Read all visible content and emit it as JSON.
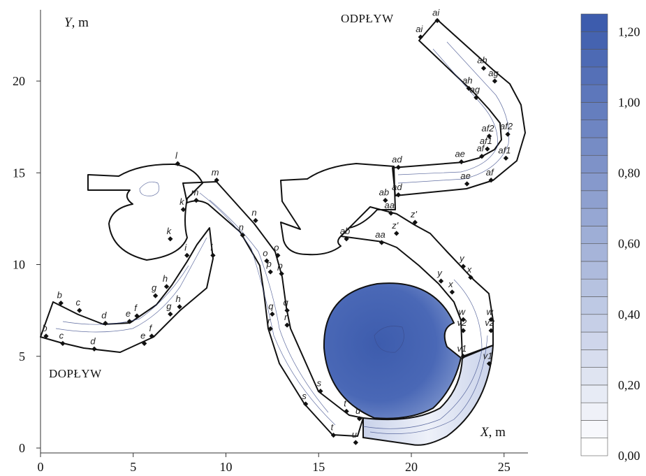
{
  "chart_data": {
    "type": "heatmap",
    "xlabel": "X, m",
    "ylabel": "Y, m",
    "xlim": [
      0,
      26
    ],
    "ylim": [
      -0.3,
      23.5
    ],
    "x_ticks": [
      0,
      5,
      10,
      15,
      20,
      25
    ],
    "y_ticks": [
      0,
      5,
      10,
      15,
      20
    ],
    "annotations": [
      {
        "text": "ODPŁYW",
        "x": 17.5,
        "y": 22.8
      },
      {
        "text": "DOPŁYW",
        "x": 1.6,
        "y": 3.9
      }
    ],
    "colorbar": {
      "min": 0.0,
      "max": 1.25,
      "step": 0.05,
      "labels": [
        "0,00",
        "0,20",
        "0,40",
        "0,60",
        "0,80",
        "1,00",
        "1,20"
      ],
      "label_values": [
        0.0,
        0.2,
        0.4,
        0.6,
        0.8,
        1.0,
        1.2
      ],
      "color_low": "#ffffff",
      "color_high": "#3d5cad"
    },
    "section_points": [
      {
        "name": "b",
        "x": 1.1,
        "y": 7.9
      },
      {
        "name": "b",
        "x": 0.3,
        "y": 6.1
      },
      {
        "name": "c",
        "x": 2.1,
        "y": 7.5
      },
      {
        "name": "c",
        "x": 1.2,
        "y": 5.7
      },
      {
        "name": "d",
        "x": 3.5,
        "y": 6.8
      },
      {
        "name": "d",
        "x": 2.9,
        "y": 5.4
      },
      {
        "name": "e",
        "x": 4.8,
        "y": 6.9
      },
      {
        "name": "e",
        "x": 5.6,
        "y": 5.7
      },
      {
        "name": "f",
        "x": 5.2,
        "y": 7.2
      },
      {
        "name": "f",
        "x": 6.0,
        "y": 6.1
      },
      {
        "name": "g",
        "x": 6.2,
        "y": 8.3
      },
      {
        "name": "g",
        "x": 7.0,
        "y": 7.3
      },
      {
        "name": "h",
        "x": 6.8,
        "y": 8.8
      },
      {
        "name": "h",
        "x": 7.5,
        "y": 7.7
      },
      {
        "name": "i",
        "x": 7.9,
        "y": 10.5
      },
      {
        "name": "i",
        "x": 9.3,
        "y": 10.5
      },
      {
        "name": "k",
        "x": 7.0,
        "y": 11.4
      },
      {
        "name": "k",
        "x": 7.7,
        "y": 13.0
      },
      {
        "name": "l",
        "x": 7.4,
        "y": 15.5
      },
      {
        "name": "m",
        "x": 9.5,
        "y": 14.6
      },
      {
        "name": "m",
        "x": 8.4,
        "y": 13.5
      },
      {
        "name": "n",
        "x": 11.6,
        "y": 12.4
      },
      {
        "name": "n",
        "x": 10.9,
        "y": 11.6
      },
      {
        "name": "o",
        "x": 12.8,
        "y": 10.5
      },
      {
        "name": "o",
        "x": 12.2,
        "y": 10.2
      },
      {
        "name": "p",
        "x": 13.0,
        "y": 9.5
      },
      {
        "name": "p",
        "x": 12.4,
        "y": 9.6
      },
      {
        "name": "q",
        "x": 13.3,
        "y": 7.5
      },
      {
        "name": "q",
        "x": 12.5,
        "y": 7.3
      },
      {
        "name": "r",
        "x": 13.3,
        "y": 6.7
      },
      {
        "name": "r",
        "x": 12.4,
        "y": 6.5
      },
      {
        "name": "s",
        "x": 15.1,
        "y": 3.1
      },
      {
        "name": "s",
        "x": 14.3,
        "y": 2.4
      },
      {
        "name": "t",
        "x": 16.5,
        "y": 2.0
      },
      {
        "name": "t",
        "x": 15.8,
        "y": 0.7
      },
      {
        "name": "u",
        "x": 17.2,
        "y": 1.6
      },
      {
        "name": "u",
        "x": 17.0,
        "y": 0.3
      },
      {
        "name": "v1",
        "x": 22.8,
        "y": 5.0
      },
      {
        "name": "v1",
        "x": 24.2,
        "y": 4.6
      },
      {
        "name": "v2",
        "x": 22.8,
        "y": 6.4
      },
      {
        "name": "v2",
        "x": 24.3,
        "y": 6.4
      },
      {
        "name": "w",
        "x": 22.8,
        "y": 7.0
      },
      {
        "name": "w",
        "x": 24.3,
        "y": 7.0
      },
      {
        "name": "x",
        "x": 22.2,
        "y": 8.5
      },
      {
        "name": "x",
        "x": 23.2,
        "y": 9.3
      },
      {
        "name": "y",
        "x": 21.6,
        "y": 9.1
      },
      {
        "name": "y",
        "x": 22.8,
        "y": 9.9
      },
      {
        "name": "z'",
        "x": 19.2,
        "y": 11.7
      },
      {
        "name": "z'",
        "x": 20.2,
        "y": 12.3
      },
      {
        "name": "aa",
        "x": 18.4,
        "y": 11.2
      },
      {
        "name": "aa",
        "x": 18.9,
        "y": 12.8
      },
      {
        "name": "ab",
        "x": 16.5,
        "y": 11.4
      },
      {
        "name": "ab",
        "x": 18.6,
        "y": 13.5
      },
      {
        "name": "ad",
        "x": 19.3,
        "y": 15.3
      },
      {
        "name": "ad",
        "x": 19.3,
        "y": 13.8
      },
      {
        "name": "ae",
        "x": 22.7,
        "y": 15.6
      },
      {
        "name": "ae",
        "x": 23.0,
        "y": 14.4
      },
      {
        "name": "af",
        "x": 23.8,
        "y": 15.9
      },
      {
        "name": "af",
        "x": 24.3,
        "y": 14.6
      },
      {
        "name": "af1",
        "x": 24.1,
        "y": 16.3
      },
      {
        "name": "af1",
        "x": 25.1,
        "y": 15.8
      },
      {
        "name": "af2",
        "x": 24.2,
        "y": 17.0
      },
      {
        "name": "af2",
        "x": 25.2,
        "y": 17.1
      },
      {
        "name": "ag",
        "x": 23.5,
        "y": 19.1
      },
      {
        "name": "ag",
        "x": 24.5,
        "y": 20.0
      },
      {
        "name": "ah",
        "x": 23.1,
        "y": 19.6
      },
      {
        "name": "ah",
        "x": 23.9,
        "y": 20.7
      },
      {
        "name": "ai",
        "x": 20.5,
        "y": 22.4
      },
      {
        "name": "ai",
        "x": 21.4,
        "y": 23.3
      }
    ]
  }
}
